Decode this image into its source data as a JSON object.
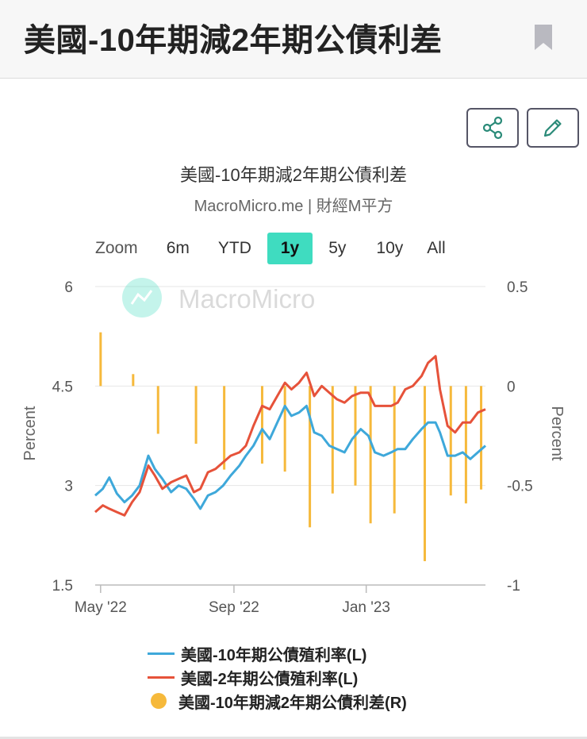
{
  "page": {
    "title": "美國-10年期減2年期公債利差"
  },
  "toolbar": {
    "share_icon": "share-icon",
    "edit_icon": "pencil-icon",
    "bookmark_icon": "bookmark-icon"
  },
  "chart_title": "美國-10年期減2年期公債利差",
  "chart_subtitle": "MacroMicro.me | 財經M平方",
  "watermark": "MacroMicro",
  "zoom": {
    "label": "Zoom",
    "options": [
      "6m",
      "YTD",
      "1y",
      "5y",
      "10y",
      "All"
    ],
    "selected": "1y"
  },
  "colors": {
    "ten_year": "#3ea8da",
    "two_year": "#e6523a",
    "spread": "#f6b93b",
    "zoom_active": "#3fdcc0"
  },
  "chart_data": {
    "type": "line",
    "y_left": {
      "label": "Percent",
      "ticks": [
        "1.5",
        "3",
        "4.5",
        "6"
      ],
      "range": [
        1.5,
        6
      ]
    },
    "y_right": {
      "label": "Percent",
      "ticks": [
        "-1",
        "-0.5",
        "0",
        "0.5"
      ],
      "range": [
        -1,
        0.5
      ]
    },
    "x_axis": {
      "ticks": [
        "May '22",
        "Sep '22",
        "Jan '23"
      ],
      "range": [
        "2022-04-26",
        "2023-04-21"
      ]
    },
    "series": [
      {
        "name": "美國-10年期公債殖利率(L)",
        "axis": "left",
        "x": [
          "2022-04-26",
          "2022-05-03",
          "2022-05-09",
          "2022-05-16",
          "2022-05-23",
          "2022-05-30",
          "2022-06-06",
          "2022-06-14",
          "2022-06-20",
          "2022-06-27",
          "2022-07-05",
          "2022-07-12",
          "2022-07-19",
          "2022-07-26",
          "2022-08-01",
          "2022-08-08",
          "2022-08-15",
          "2022-08-22",
          "2022-08-29",
          "2022-09-06",
          "2022-09-12",
          "2022-09-19",
          "2022-09-27",
          "2022-10-04",
          "2022-10-11",
          "2022-10-18",
          "2022-10-24",
          "2022-10-31",
          "2022-11-07",
          "2022-11-14",
          "2022-11-21",
          "2022-11-28",
          "2022-12-05",
          "2022-12-12",
          "2022-12-19",
          "2022-12-27",
          "2023-01-03",
          "2023-01-09",
          "2023-01-17",
          "2023-01-24",
          "2023-01-30",
          "2023-02-06",
          "2023-02-13",
          "2023-02-21",
          "2023-02-27",
          "2023-03-06",
          "2023-03-10",
          "2023-03-17",
          "2023-03-24",
          "2023-03-31",
          "2023-04-07",
          "2023-04-14",
          "2023-04-21"
        ],
        "values": [
          2.85,
          2.95,
          3.12,
          2.88,
          2.75,
          2.85,
          3.0,
          3.45,
          3.25,
          3.1,
          2.9,
          3.0,
          2.95,
          2.8,
          2.65,
          2.85,
          2.9,
          3.0,
          3.15,
          3.3,
          3.45,
          3.6,
          3.85,
          3.7,
          3.95,
          4.2,
          4.05,
          4.1,
          4.2,
          3.8,
          3.75,
          3.6,
          3.55,
          3.5,
          3.7,
          3.85,
          3.75,
          3.5,
          3.45,
          3.5,
          3.55,
          3.55,
          3.7,
          3.85,
          3.95,
          3.95,
          3.8,
          3.45,
          3.45,
          3.5,
          3.4,
          3.5,
          3.6
        ]
      },
      {
        "name": "美國-2年期公債殖利率(L)",
        "axis": "left",
        "x": [
          "2022-04-26",
          "2022-05-03",
          "2022-05-09",
          "2022-05-16",
          "2022-05-23",
          "2022-05-30",
          "2022-06-06",
          "2022-06-14",
          "2022-06-20",
          "2022-06-27",
          "2022-07-05",
          "2022-07-12",
          "2022-07-19",
          "2022-07-26",
          "2022-08-01",
          "2022-08-08",
          "2022-08-15",
          "2022-08-22",
          "2022-08-29",
          "2022-09-06",
          "2022-09-12",
          "2022-09-19",
          "2022-09-27",
          "2022-10-04",
          "2022-10-11",
          "2022-10-18",
          "2022-10-24",
          "2022-10-31",
          "2022-11-07",
          "2022-11-14",
          "2022-11-21",
          "2022-11-28",
          "2022-12-05",
          "2022-12-12",
          "2022-12-19",
          "2022-12-27",
          "2023-01-03",
          "2023-01-09",
          "2023-01-17",
          "2023-01-24",
          "2023-01-30",
          "2023-02-06",
          "2023-02-13",
          "2023-02-21",
          "2023-02-27",
          "2023-03-06",
          "2023-03-10",
          "2023-03-17",
          "2023-03-24",
          "2023-03-31",
          "2023-04-07",
          "2023-04-14",
          "2023-04-21"
        ],
        "values": [
          2.6,
          2.7,
          2.65,
          2.6,
          2.55,
          2.75,
          2.9,
          3.3,
          3.15,
          2.95,
          3.05,
          3.1,
          3.15,
          2.9,
          2.95,
          3.2,
          3.25,
          3.35,
          3.45,
          3.5,
          3.6,
          3.9,
          4.2,
          4.15,
          4.35,
          4.55,
          4.45,
          4.55,
          4.7,
          4.35,
          4.5,
          4.4,
          4.3,
          4.25,
          4.35,
          4.4,
          4.4,
          4.2,
          4.2,
          4.2,
          4.25,
          4.45,
          4.5,
          4.65,
          4.85,
          4.95,
          4.45,
          3.9,
          3.8,
          3.95,
          3.95,
          4.1,
          4.15
        ]
      },
      {
        "name": "美國-10年期減2年期公債利差(R)",
        "axis": "right",
        "type": "bar",
        "x": [
          "2022-05-01",
          "2022-05-31",
          "2022-06-23",
          "2022-07-28",
          "2022-08-23",
          "2022-09-27",
          "2022-10-18",
          "2022-11-10",
          "2022-12-01",
          "2022-12-22",
          "2023-01-05",
          "2023-01-27",
          "2023-02-24",
          "2023-03-20",
          "2023-04-03",
          "2023-04-17"
        ],
        "values": [
          0.27,
          0.06,
          -0.24,
          -0.29,
          -0.42,
          -0.39,
          -0.43,
          -0.71,
          -0.54,
          -0.5,
          -0.69,
          -0.64,
          -0.88,
          -0.55,
          -0.59,
          -0.52
        ]
      }
    ]
  },
  "legend": {
    "items": [
      "美國-10年期公債殖利率(L)",
      "美國-2年期公債殖利率(L)",
      "美國-10年期減2年期公債利差(R)"
    ]
  }
}
